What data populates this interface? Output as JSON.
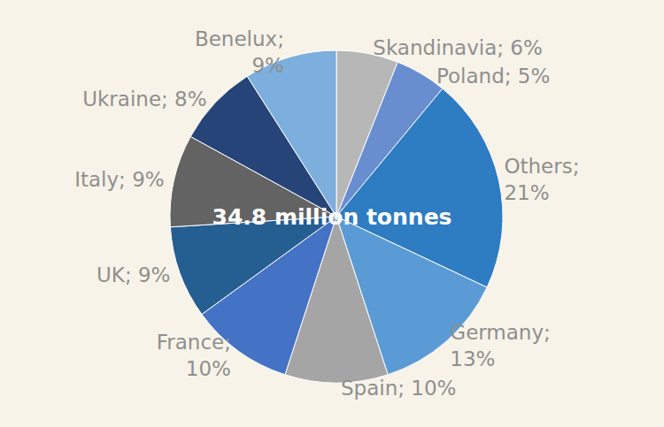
{
  "chart_data": {
    "type": "pie",
    "title": "34.8 million tonnes",
    "categories": [
      "Skandinavia",
      "Poland",
      "Others",
      "Germany",
      "Spain",
      "France",
      "UK",
      "Italy",
      "Ukraine",
      "Benelux"
    ],
    "values": [
      6,
      5,
      21,
      13,
      10,
      10,
      9,
      9,
      8,
      9
    ],
    "value_labels": [
      "Skandinavia; 6%",
      "Poland; 5%",
      "Others; 21%",
      "Germany; 13%",
      "Spain; 10%",
      "France; 10%",
      "UK; 9%",
      "Italy; 9%",
      "Ukraine; 8%",
      "Benelux; 9%"
    ],
    "colors": [
      "#b7b7b7",
      "#698ed0",
      "#2e7cc2",
      "#5b9bd5",
      "#a5a5a5",
      "#4472c4",
      "#255e91",
      "#636363",
      "#264478",
      "#7caede"
    ],
    "data_labels": true
  }
}
